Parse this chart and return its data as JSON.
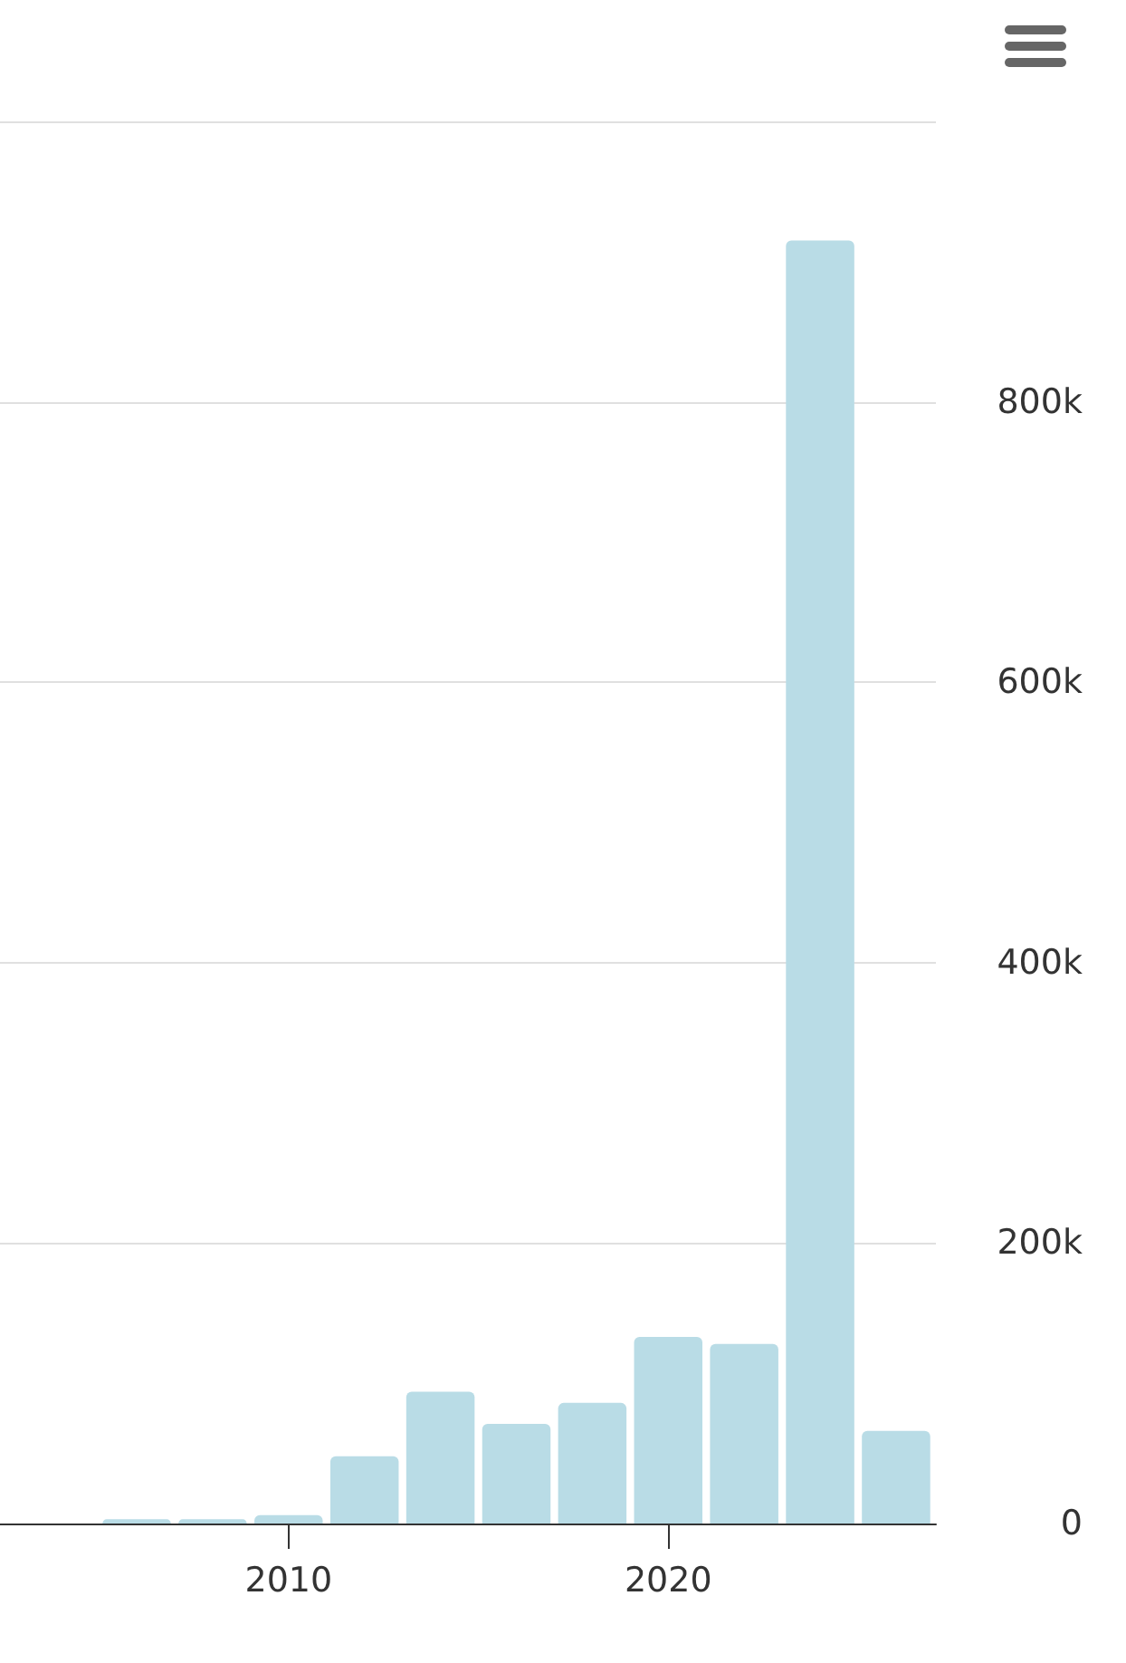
{
  "chart_data": {
    "type": "bar",
    "x": [
      2006,
      2008,
      2010,
      2012,
      2014,
      2016,
      2018,
      2020,
      2022,
      2024,
      2026
    ],
    "values": [
      3000,
      3000,
      6000,
      48000,
      94000,
      71000,
      86000,
      133000,
      128000,
      915000,
      66000
    ],
    "color": "#b9dce6",
    "xlim": [
      2002.4,
      2027.05
    ],
    "xticks": [
      2010,
      2020
    ],
    "ylim": [
      0,
      1000000
    ],
    "yticks": [
      0,
      {
        "value": 200000,
        "label": "200k"
      },
      {
        "value": 400000,
        "label": "400k"
      },
      {
        "value": 600000,
        "label": "600k"
      },
      {
        "value": 800000,
        "label": "800k"
      },
      {
        "value": 1000000,
        "label": null
      }
    ],
    "grid": "y"
  }
}
